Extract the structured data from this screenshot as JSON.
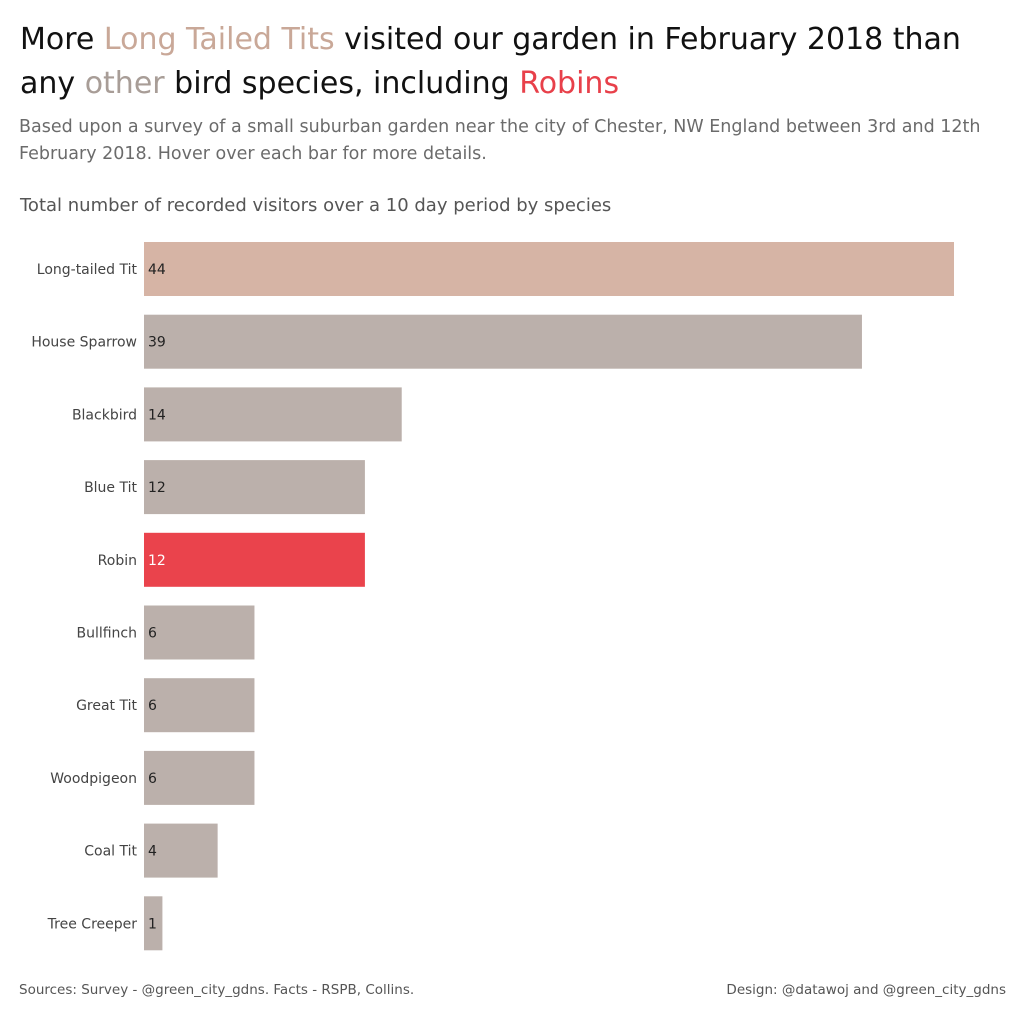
{
  "headline": {
    "part1": "More ",
    "highlight1": "Long Tailed Tits",
    "part2": " visited our garden in February 2018 than any ",
    "highlight2": "other",
    "part3": " bird species, including ",
    "highlight3": "Robins"
  },
  "subtitle": "Based upon a survey of a small suburban garden near the city of Chester, NW England between 3rd and 12th February 2018.  Hover over each bar for more details.",
  "colors": {
    "highlight": "#d6b4a5",
    "other": "#bbb0ab",
    "robin": "#ea434c",
    "label_dark": "#222222",
    "label_light": "#ffffff"
  },
  "chart_data": {
    "type": "bar",
    "orientation": "horizontal",
    "title": "Total number of recorded visitors over a 10 day period by species",
    "categories": [
      "Long-tailed Tit",
      "House Sparrow",
      "Blackbird",
      "Blue Tit",
      "Robin",
      "Bullfinch",
      "Great Tit",
      "Woodpigeon",
      "Coal Tit",
      "Tree Creeper"
    ],
    "values": [
      44,
      39,
      14,
      12,
      12,
      6,
      6,
      6,
      4,
      1
    ],
    "bar_color_groups": [
      "highlight",
      "other",
      "other",
      "other",
      "robin",
      "other",
      "other",
      "other",
      "other",
      "other"
    ],
    "xlim": [
      0,
      44
    ],
    "grid": false,
    "data_labels": true
  },
  "footer": {
    "sources": "Sources: Survey - @green_city_gdns. Facts - RSPB, Collins.",
    "design": "Design: @datawoj and @green_city_gdns"
  }
}
